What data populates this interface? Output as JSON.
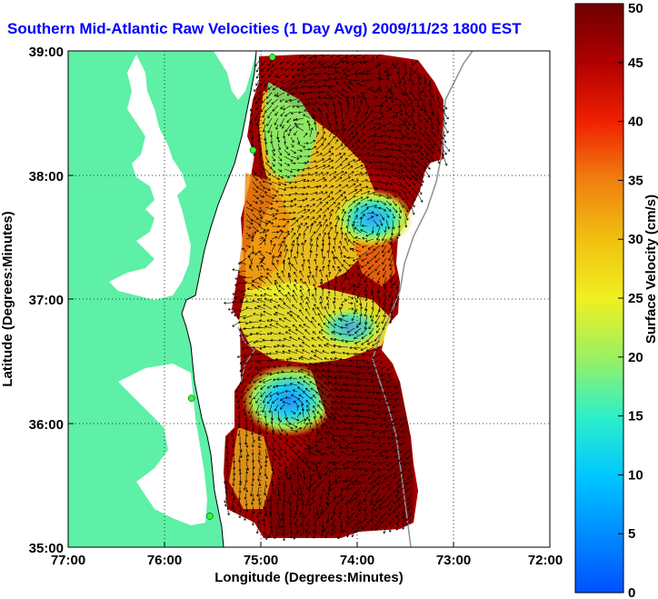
{
  "title": "Southern Mid-Atlantic Raw Velocities (1 Day Avg) 2009/11/23 1800 EST",
  "x_axis": {
    "label": "Longitude (Degrees:Minutes)",
    "ticks": [
      "77:00",
      "76:00",
      "75:00",
      "74:00",
      "73:00",
      "72:00"
    ],
    "range": [
      -77,
      -72
    ]
  },
  "y_axis": {
    "label": "Latitude (Degrees:Minutes)",
    "ticks": [
      "39:00",
      "38:00",
      "37:00",
      "36:00",
      "35:00"
    ],
    "range": [
      35,
      39
    ]
  },
  "colorbar": {
    "label": "Surface Velocity (cm/s)",
    "ticks": [
      "50",
      "45",
      "40",
      "35",
      "30",
      "25",
      "20",
      "15",
      "10",
      "5",
      "0"
    ],
    "range": [
      0,
      50
    ]
  },
  "colors": {
    "land": "#5ef0a6",
    "title": "#0000ff",
    "station": "#33ff33"
  },
  "stations": [
    {
      "lon": -74.88,
      "lat": 38.95
    },
    {
      "lon": -75.08,
      "lat": 38.2
    },
    {
      "lon": -75.72,
      "lat": 36.2
    },
    {
      "lon": -75.53,
      "lat": 35.25
    }
  ]
}
